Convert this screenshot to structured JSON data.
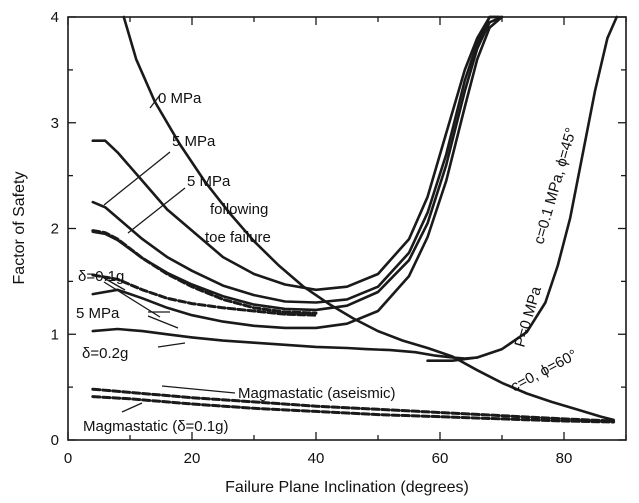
{
  "chart_data": {
    "type": "line",
    "title": "",
    "xlabel": "Failure Plane Inclination (degrees)",
    "ylabel": "Factor of Safety",
    "xlim": [
      0,
      90
    ],
    "ylim": [
      0,
      4
    ],
    "xticks": [
      "0",
      "20",
      "40",
      "60",
      "80"
    ],
    "yticks": [
      "0",
      "1",
      "2",
      "3",
      "4"
    ],
    "grid": false,
    "series": [
      {
        "style": "solid",
        "x": [
          9,
          11,
          14,
          18,
          22,
          26,
          30,
          34,
          38,
          42,
          46,
          50,
          54,
          58,
          62,
          66,
          70,
          74,
          78,
          82,
          86,
          88
        ],
        "y": [
          4.0,
          3.6,
          3.2,
          2.8,
          2.45,
          2.15,
          1.88,
          1.65,
          1.45,
          1.29,
          1.15,
          1.03,
          0.94,
          0.87,
          0.79,
          0.66,
          0.54,
          0.44,
          0.36,
          0.29,
          0.22,
          0.19
        ]
      },
      {
        "style": "solid",
        "x": [
          4,
          6,
          8,
          12,
          16,
          20,
          25,
          30,
          35,
          40,
          45,
          50,
          55,
          58,
          61,
          64,
          66,
          68,
          69.5
        ],
        "y": [
          2.83,
          2.83,
          2.72,
          2.45,
          2.18,
          1.98,
          1.73,
          1.57,
          1.47,
          1.42,
          1.45,
          1.57,
          1.9,
          2.3,
          2.9,
          3.5,
          3.8,
          4.0,
          4.0
        ]
      },
      {
        "style": "solid",
        "x": [
          4,
          6,
          8,
          12,
          16,
          20,
          25,
          30,
          35,
          40,
          45,
          50,
          55,
          58,
          61,
          64,
          66,
          68,
          69.8
        ],
        "y": [
          2.25,
          2.2,
          2.1,
          1.9,
          1.73,
          1.6,
          1.46,
          1.37,
          1.31,
          1.3,
          1.33,
          1.45,
          1.77,
          2.15,
          2.7,
          3.4,
          3.75,
          4.0,
          4.0
        ]
      },
      {
        "style": "dashed",
        "x": [
          4,
          6,
          8,
          12,
          16,
          20,
          25,
          30,
          35,
          40
        ],
        "y": [
          1.98,
          1.96,
          1.9,
          1.72,
          1.57,
          1.45,
          1.33,
          1.25,
          1.21,
          1.2
        ]
      },
      {
        "style": "solid",
        "x": [
          4,
          6,
          8,
          12,
          16,
          20,
          25,
          30,
          35,
          40,
          45,
          50,
          55,
          58,
          61,
          64,
          66,
          68,
          70
        ],
        "y": [
          1.97,
          1.95,
          1.89,
          1.72,
          1.58,
          1.47,
          1.36,
          1.28,
          1.24,
          1.23,
          1.27,
          1.4,
          1.7,
          2.05,
          2.6,
          3.3,
          3.7,
          3.95,
          4.0
        ]
      },
      {
        "style": "dashed",
        "x": [
          4,
          8,
          12,
          16,
          20,
          25,
          30,
          35,
          40
        ],
        "y": [
          1.56,
          1.52,
          1.42,
          1.34,
          1.29,
          1.25,
          1.22,
          1.19,
          1.18
        ]
      },
      {
        "style": "solid",
        "x": [
          4,
          8,
          12,
          16,
          20,
          25,
          30,
          35,
          40,
          45,
          50,
          55,
          58,
          61,
          64,
          66,
          68,
          70
        ],
        "y": [
          1.38,
          1.42,
          1.34,
          1.25,
          1.18,
          1.12,
          1.08,
          1.06,
          1.06,
          1.1,
          1.22,
          1.55,
          1.92,
          2.45,
          3.15,
          3.6,
          3.9,
          4.0
        ]
      },
      {
        "style": "solid",
        "x": [
          4,
          8,
          12,
          16,
          20,
          25,
          30,
          35,
          40,
          45,
          48,
          52,
          56,
          59,
          62,
          64,
          66
        ],
        "y": [
          1.03,
          1.05,
          1.03,
          1.0,
          0.97,
          0.94,
          0.92,
          0.9,
          0.88,
          0.87,
          0.86,
          0.85,
          0.83,
          0.8,
          0.78,
          0.77,
          0.78
        ]
      },
      {
        "style": "solid",
        "x": [
          58,
          62,
          66,
          70,
          74,
          77,
          79,
          81,
          83,
          85,
          87,
          88.5
        ],
        "y": [
          0.75,
          0.75,
          0.78,
          0.86,
          1.02,
          1.3,
          1.65,
          2.1,
          2.7,
          3.3,
          3.8,
          4.0
        ]
      },
      {
        "style": "dashed",
        "x": [
          4,
          10,
          20,
          30,
          40,
          50,
          60,
          70,
          80,
          88
        ],
        "y": [
          0.48,
          0.45,
          0.4,
          0.36,
          0.32,
          0.29,
          0.26,
          0.23,
          0.2,
          0.18
        ]
      },
      {
        "style": "dashed",
        "x": [
          4,
          10,
          20,
          30,
          40,
          50,
          60,
          70,
          80,
          88
        ],
        "y": [
          0.41,
          0.39,
          0.34,
          0.3,
          0.27,
          0.24,
          0.22,
          0.2,
          0.18,
          0.17
        ]
      }
    ],
    "annotations": [
      {
        "text": "0 MPa"
      },
      {
        "text": "5 MPa"
      },
      {
        "text": "5 MPa"
      },
      {
        "text": "following"
      },
      {
        "text": "toe failure"
      },
      {
        "text": "δ=0.1g"
      },
      {
        "text": "5 MPa"
      },
      {
        "text": "δ=0.2g"
      },
      {
        "text": "Magmastatic (aseismic)"
      },
      {
        "text": "Magmastatic (δ=0.1g)"
      },
      {
        "text": "c=0.1 MPa, ϕ=45°"
      },
      {
        "text": "P=0 MPa"
      },
      {
        "text": "c=0, ϕ=60°"
      }
    ]
  }
}
